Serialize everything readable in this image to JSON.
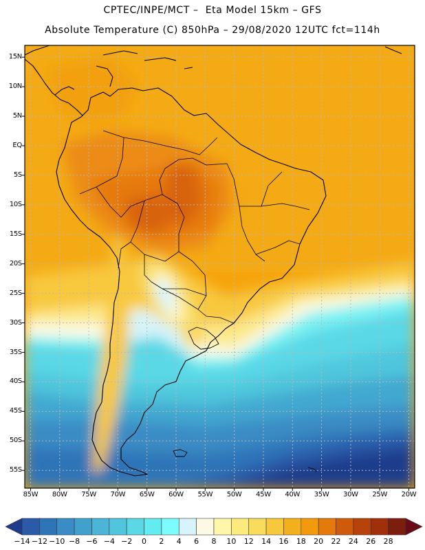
{
  "header": {
    "line1": "CPTEC/INPE/MCT –  Eta Model 15km – GFS",
    "line2": "Absolute Temperature (C) 850hPa – 29/08/2020 12UTC fct=114h"
  },
  "map": {
    "lat_labels": [
      "15N",
      "10N",
      "5N",
      "EQ",
      "5S",
      "10S",
      "15S",
      "20S",
      "25S",
      "30S",
      "35S",
      "40S",
      "45S",
      "50S",
      "55S"
    ],
    "lon_labels": [
      "85W",
      "80W",
      "75W",
      "70W",
      "65W",
      "60W",
      "55W",
      "50W",
      "45W",
      "40W",
      "35W",
      "30W",
      "25W",
      "20W"
    ],
    "region": "South America",
    "lat_range": [
      17,
      -58
    ],
    "lon_range": [
      -86,
      -19
    ]
  },
  "colorbar": {
    "labels": [
      "-14",
      "-12",
      "-10",
      "-8",
      "-6",
      "-4",
      "-2",
      "0",
      "2",
      "4",
      "6",
      "8",
      "10",
      "12",
      "14",
      "16",
      "18",
      "20",
      "22",
      "24",
      "26",
      "28"
    ],
    "colors": [
      "#1e3c8c",
      "#2a5aa8",
      "#2e74b8",
      "#3a8cc4",
      "#42a0cc",
      "#4cb4d4",
      "#50c6dc",
      "#5ad8e6",
      "#62ecf0",
      "#7cfcfc",
      "#d6f4fa",
      "#fcfae4",
      "#fef6a8",
      "#fcea7c",
      "#fadc5c",
      "#f8c83c",
      "#f4b01c",
      "#f29a0c",
      "#e47a0c",
      "#d05a0c",
      "#b8420c",
      "#a0300c",
      "#7c1e0c",
      "#680a18"
    ]
  }
}
